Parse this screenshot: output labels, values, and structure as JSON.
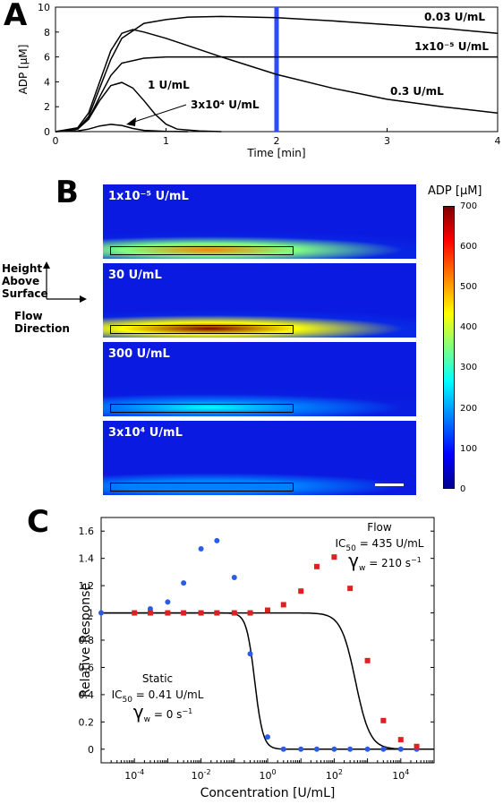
{
  "panels": {
    "a": "A",
    "b": "B",
    "c": "C"
  },
  "panel_b": {
    "colorbar_title": "ADP [μM]",
    "colorbar_ticks": [
      "700",
      "600",
      "500",
      "400",
      "300",
      "200",
      "100",
      "0"
    ],
    "axes_note": {
      "height": [
        "Height",
        "Above",
        "Surface"
      ],
      "flow": [
        "Flow",
        "Direction"
      ]
    },
    "maps": [
      {
        "label": "1x10⁻⁵ U/mL",
        "peak": 480
      },
      {
        "label": "30 U/mL",
        "peak": 700
      },
      {
        "label": "300 U/mL",
        "peak": 170
      },
      {
        "label": "3x10⁴ U/mL",
        "peak": 10
      }
    ],
    "scale_bar": true
  },
  "chart_data": [
    {
      "type": "line",
      "xlabel": "Time [min]",
      "ylabel": "ADP [μM]",
      "xlim": [
        0,
        4
      ],
      "ylim": [
        0,
        10
      ],
      "xticks": [
        "0",
        "1",
        "2",
        "3",
        "4"
      ],
      "yticks": [
        "0",
        "2",
        "4",
        "6",
        "8",
        "10"
      ],
      "annotations": {
        "vertical_line_x": 2,
        "vertical_line_color": "#2b4cff"
      },
      "series": [
        {
          "name": "0.03 U/mL",
          "x": [
            0,
            0.2,
            0.3,
            0.4,
            0.5,
            0.6,
            0.8,
            1.0,
            1.2,
            1.5,
            2.0,
            2.5,
            3.0,
            3.5,
            4.0
          ],
          "y": [
            0,
            0.2,
            1.2,
            3.5,
            5.8,
            7.5,
            8.7,
            9.0,
            9.2,
            9.25,
            9.15,
            8.9,
            8.6,
            8.3,
            7.9
          ]
        },
        {
          "name": "1x10⁻⁵ U/mL",
          "x": [
            0,
            0.2,
            0.3,
            0.4,
            0.5,
            0.6,
            0.8,
            1.0,
            1.5,
            2.0,
            3.0,
            4.0
          ],
          "y": [
            0,
            0.2,
            1.0,
            2.8,
            4.5,
            5.5,
            5.9,
            6.0,
            6.0,
            6.0,
            6.0,
            6.0
          ]
        },
        {
          "name": "0.3 U/mL",
          "x": [
            0,
            0.2,
            0.3,
            0.4,
            0.5,
            0.6,
            0.7,
            0.8,
            1.0,
            1.2,
            1.5,
            2.0,
            2.5,
            3.0,
            3.5,
            4.0
          ],
          "y": [
            0,
            0.3,
            1.5,
            4.0,
            6.5,
            7.9,
            8.2,
            8.0,
            7.5,
            6.9,
            6.0,
            4.6,
            3.5,
            2.6,
            2.0,
            1.5
          ]
        },
        {
          "name": "1 U/mL",
          "x": [
            0,
            0.2,
            0.3,
            0.4,
            0.5,
            0.6,
            0.7,
            0.8,
            0.9,
            1.0,
            1.1,
            1.3,
            1.5
          ],
          "y": [
            0,
            0.2,
            1.0,
            2.5,
            3.7,
            3.95,
            3.5,
            2.5,
            1.4,
            0.6,
            0.2,
            0.05,
            0
          ]
        },
        {
          "name": "3x10⁴ U/mL",
          "x": [
            0,
            0.2,
            0.3,
            0.4,
            0.5,
            0.6,
            0.7,
            0.8,
            1.0,
            1.2
          ],
          "y": [
            0,
            0.05,
            0.2,
            0.45,
            0.58,
            0.5,
            0.25,
            0.1,
            0.02,
            0
          ]
        }
      ],
      "labels": [
        "0.03 U/mL",
        "1x10⁻⁵ U/mL",
        "1 U/mL",
        "3x10⁴ U/mL",
        "0.3 U/mL"
      ]
    },
    {
      "type": "scatter",
      "xlabel": "Concentration [U/mL]",
      "ylabel": "Relative Response",
      "xscale": "log",
      "xlim": [
        1e-05,
        100000.0
      ],
      "ylim": [
        -0.1,
        1.7
      ],
      "yticks": [
        "0",
        "0.2",
        "0.4",
        "0.6",
        "0.8",
        "1",
        "1.2",
        "1.4",
        "1.6"
      ],
      "xticks_exp": [
        "-4",
        "-2",
        "0",
        "2",
        "4"
      ],
      "series": [
        {
          "name": "Static",
          "color": "#2b5ce6",
          "x": [
            1e-05,
            0.0001,
            0.0003,
            0.001,
            0.003,
            0.01,
            0.03,
            0.1,
            0.3,
            1,
            3,
            10,
            30,
            100,
            300,
            1000,
            3000,
            10000,
            30000
          ],
          "y": [
            1.0,
            1.0,
            1.03,
            1.08,
            1.22,
            1.47,
            1.53,
            1.26,
            0.7,
            0.09,
            0.0,
            0.0,
            0.0,
            0.0,
            0.0,
            0.0,
            0.0,
            0.0,
            0.0
          ]
        },
        {
          "name": "Flow",
          "color": "#e02020",
          "x": [
            0.0001,
            0.0003,
            0.001,
            0.003,
            0.01,
            0.03,
            0.1,
            0.3,
            1,
            3,
            10,
            30,
            100,
            300,
            1000,
            3000,
            10000,
            30000
          ],
          "y": [
            1.0,
            1.0,
            1.0,
            1.0,
            1.0,
            1.0,
            1.0,
            1.0,
            1.02,
            1.06,
            1.16,
            1.34,
            1.41,
            1.18,
            0.65,
            0.21,
            0.07,
            0.02
          ]
        }
      ],
      "fits": [
        {
          "name": "Static",
          "ic50": 0.41,
          "hill": 3.5
        },
        {
          "name": "Flow",
          "ic50": 435,
          "hill": 2.0
        }
      ],
      "annotations": {
        "static": {
          "title": "Static",
          "ic50_label": "IC",
          "ic50_sub": "50",
          "ic50_value": " = 0.41 U/mL",
          "gamma": "γ",
          "gamma_sub": "w",
          "gamma_value": " = 0 s",
          "gamma_exp": "−1"
        },
        "flow": {
          "title": "Flow",
          "ic50_label": "IC",
          "ic50_sub": "50",
          "ic50_value": " = 435 U/mL",
          "gamma": "γ",
          "gamma_sub": "w",
          "gamma_value": " = 210 s",
          "gamma_exp": "−1"
        }
      }
    }
  ]
}
